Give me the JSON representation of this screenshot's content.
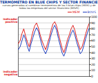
{
  "chart_data": {
    "type": "line",
    "title": "TERMÓMETRO EN BLUE CHIPS Y SECTOR FINANCIERO",
    "subtitle": "curvas generadas al combinar termómetros de las 5 blue chips (MEM) y de todas las empresas del sector financiero (BOVS)",
    "annotations": [
      "indicador positivo",
      "indicador negativo"
    ],
    "x": [
      1,
      2,
      3,
      4,
      5,
      6,
      7,
      8,
      9,
      10,
      11,
      12,
      13,
      14,
      15,
      16,
      17,
      18,
      19,
      20,
      21,
      22,
      23,
      24,
      25,
      26,
      27,
      28,
      29,
      30,
      31,
      32,
      33,
      34,
      35,
      36,
      37,
      38,
      39,
      40
    ],
    "series": [
      {
        "name": "MEM",
        "color": "#e02020",
        "values": [
          55,
          60,
          72,
          80,
          68,
          58,
          50,
          62,
          75,
          85,
          90,
          82,
          70,
          60,
          52,
          45,
          55,
          65,
          78,
          88,
          92,
          85,
          72,
          60,
          48,
          40,
          50,
          62,
          70,
          80,
          86,
          78,
          65,
          55,
          45,
          50,
          60,
          72,
          82,
          90
        ]
      },
      {
        "name": "BOVS",
        "color": "#1f3fbf",
        "values": [
          45,
          50,
          60,
          70,
          62,
          50,
          42,
          55,
          65,
          75,
          82,
          76,
          64,
          52,
          44,
          38,
          46,
          58,
          70,
          80,
          86,
          78,
          64,
          52,
          40,
          34,
          42,
          54,
          64,
          72,
          78,
          70,
          58,
          48,
          38,
          42,
          52,
          64,
          74,
          82
        ]
      }
    ],
    "xlim": [
      1,
      40
    ],
    "ylim": [
      0,
      100
    ],
    "yticks": [
      0,
      10,
      20,
      30,
      40,
      50,
      60,
      70,
      80,
      90,
      100
    ],
    "grid": true,
    "legend": "top-right",
    "tick_labels": "y"
  }
}
